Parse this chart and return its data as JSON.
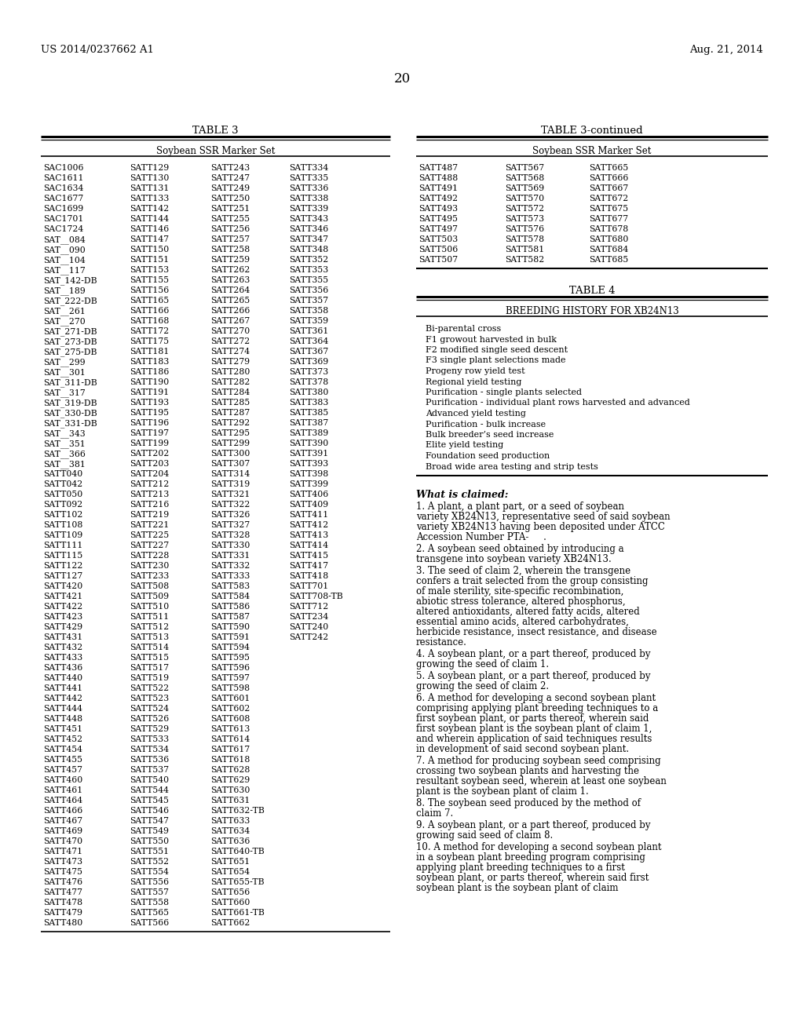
{
  "header_left": "US 2014/0237662 A1",
  "header_right": "Aug. 21, 2014",
  "page_number": "20",
  "table3_title": "TABLE 3",
  "table3_subtitle": "Soybean SSR Marker Set",
  "table3cont_title": "TABLE 3-continued",
  "table3cont_subtitle": "Soybean SSR Marker Set",
  "table4_title": "TABLE 4",
  "table4_subtitle": "BREEDING HISTORY FOR XB24N13",
  "table4_rows": [
    "Bi-parental cross",
    "F1 growout harvested in bulk",
    "F2 modified single seed descent",
    "F3 single plant selections made",
    "Progeny row yield test",
    "Regional yield testing",
    "Purification - single plants selected",
    "Purification - individual plant rows harvested and advanced",
    "Advanced yield testing",
    "Purification - bulk increase",
    "Bulk breeder’s seed increase",
    "Elite yield testing",
    "Foundation seed production",
    "Broad wide area testing and strip tests"
  ],
  "table3_col1": [
    "SAC1006",
    "SAC1611",
    "SAC1634",
    "SAC1677",
    "SAC1699",
    "SAC1701",
    "SAC1724",
    "SAT__084",
    "SAT__090",
    "SAT__104",
    "SAT__117",
    "SAT_142-DB",
    "SAT__189",
    "SAT_222-DB",
    "SAT__261",
    "SAT__270",
    "SAT_271-DB",
    "SAT_273-DB",
    "SAT_275-DB",
    "SAT__299",
    "SAT__301",
    "SAT_311-DB",
    "SAT__317",
    "SAT_319-DB",
    "SAT_330-DB",
    "SAT_331-DB",
    "SAT__343",
    "SAT__351",
    "SAT__366",
    "SAT__381",
    "SATT040",
    "SATT042",
    "SATT050",
    "SATT092",
    "SATT102",
    "SATT108",
    "SATT109",
    "SATT111",
    "SATT115",
    "SATT122",
    "SATT127",
    "SATT420",
    "SATT421",
    "SATT422",
    "SATT423",
    "SATT429",
    "SATT431",
    "SATT432",
    "SATT433",
    "SATT436",
    "SATT440",
    "SATT441",
    "SATT442",
    "SATT444",
    "SATT448",
    "SATT451",
    "SATT452",
    "SATT454",
    "SATT455",
    "SATT457",
    "SATT460",
    "SATT461",
    "SATT464",
    "SATT466",
    "SATT467",
    "SATT469",
    "SATT470",
    "SATT471",
    "SATT473",
    "SATT475",
    "SATT476",
    "SATT477",
    "SATT478",
    "SATT479",
    "SATT480"
  ],
  "table3_col2": [
    "SATT129",
    "SATT130",
    "SATT131",
    "SATT133",
    "SATT142",
    "SATT144",
    "SATT146",
    "SATT147",
    "SATT150",
    "SATT151",
    "SATT153",
    "SATT155",
    "SATT156",
    "SATT165",
    "SATT166",
    "SATT168",
    "SATT172",
    "SATT175",
    "SATT181",
    "SATT183",
    "SATT186",
    "SATT190",
    "SATT191",
    "SATT193",
    "SATT195",
    "SATT196",
    "SATT197",
    "SATT199",
    "SATT202",
    "SATT203",
    "SATT204",
    "SATT212",
    "SATT213",
    "SATT216",
    "SATT219",
    "SATT221",
    "SATT225",
    "SATT227",
    "SATT228",
    "SATT230",
    "SATT233",
    "SATT508",
    "SATT509",
    "SATT510",
    "SATT511",
    "SATT512",
    "SATT513",
    "SATT514",
    "SATT515",
    "SATT517",
    "SATT519",
    "SATT522",
    "SATT523",
    "SATT524",
    "SATT526",
    "SATT529",
    "SATT533",
    "SATT534",
    "SATT536",
    "SATT537",
    "SATT540",
    "SATT544",
    "SATT545",
    "SATT546",
    "SATT547",
    "SATT549",
    "SATT550",
    "SATT551",
    "SATT552",
    "SATT554",
    "SATT556",
    "SATT557",
    "SATT558",
    "SATT565",
    "SATT566"
  ],
  "table3_col3": [
    "SATT243",
    "SATT247",
    "SATT249",
    "SATT250",
    "SATT251",
    "SATT255",
    "SATT256",
    "SATT257",
    "SATT258",
    "SATT259",
    "SATT262",
    "SATT263",
    "SATT264",
    "SATT265",
    "SATT266",
    "SATT267",
    "SATT270",
    "SATT272",
    "SATT274",
    "SATT279",
    "SATT280",
    "SATT282",
    "SATT284",
    "SATT285",
    "SATT287",
    "SATT292",
    "SATT295",
    "SATT299",
    "SATT300",
    "SATT307",
    "SATT314",
    "SATT319",
    "SATT321",
    "SATT322",
    "SATT326",
    "SATT327",
    "SATT328",
    "SATT330",
    "SATT331",
    "SATT332",
    "SATT333",
    "SATT583",
    "SATT584",
    "SATT586",
    "SATT587",
    "SATT590",
    "SATT591",
    "SATT594",
    "SATT595",
    "SATT596",
    "SATT597",
    "SATT598",
    "SATT601",
    "SATT602",
    "SATT608",
    "SATT613",
    "SATT614",
    "SATT617",
    "SATT618",
    "SATT628",
    "SATT629",
    "SATT630",
    "SATT631",
    "SATT632-TB",
    "SATT633",
    "SATT634",
    "SATT636",
    "SATT640-TB",
    "SATT651",
    "SATT654",
    "SATT655-TB",
    "SATT656",
    "SATT660",
    "SATT661-TB",
    "SATT662"
  ],
  "table3_col4": [
    "SATT334",
    "SATT335",
    "SATT336",
    "SATT338",
    "SATT339",
    "SATT343",
    "SATT346",
    "SATT347",
    "SATT348",
    "SATT352",
    "SATT353",
    "SATT355",
    "SATT356",
    "SATT357",
    "SATT358",
    "SATT359",
    "SATT361",
    "SATT364",
    "SATT367",
    "SATT369",
    "SATT373",
    "SATT378",
    "SATT380",
    "SATT383",
    "SATT385",
    "SATT387",
    "SATT389",
    "SATT390",
    "SATT391",
    "SATT393",
    "SATT398",
    "SATT399",
    "SATT406",
    "SATT409",
    "SATT411",
    "SATT412",
    "SATT413",
    "SATT414",
    "SATT415",
    "SATT417",
    "SATT418",
    "SATT701",
    "SATT708-TB",
    "SATT712",
    "SATT234",
    "SATT240",
    "SATT242"
  ],
  "table3cont_col1": [
    "SATT487",
    "SATT488",
    "SATT491",
    "SATT492",
    "SATT493",
    "SATT495",
    "SATT497",
    "SATT503",
    "SATT506",
    "SATT507"
  ],
  "table3cont_col2": [
    "SATT567",
    "SATT568",
    "SATT569",
    "SATT570",
    "SATT572",
    "SATT573",
    "SATT576",
    "SATT578",
    "SATT581",
    "SATT582"
  ],
  "table3cont_col3": [
    "SATT665",
    "SATT666",
    "SATT667",
    "SATT672",
    "SATT675",
    "SATT677",
    "SATT678",
    "SATT680",
    "SATT684",
    "SATT685"
  ],
  "claims_header": "What is claimed:",
  "claims": [
    {
      "number": "1",
      "text": "A plant, a plant part, or a seed of soybean variety XB24N13, representative seed of said soybean variety XB24N13 having been deposited under ATCC Accession Number PTA-     ."
    },
    {
      "number": "2",
      "text": "A soybean seed obtained by introducing a transgene into soybean variety XB24N13."
    },
    {
      "number": "3",
      "text": "The seed of claim 2, wherein the transgene confers a trait selected from the group consisting of male sterility, site-specific recombination, abiotic stress tolerance, altered phosphorus, altered antioxidants, altered fatty acids, altered essential amino acids, altered carbohydrates, herbicide resistance, insect resistance, and disease resistance."
    },
    {
      "number": "4",
      "text": "A soybean plant, or a part thereof, produced by growing the seed of claim 1."
    },
    {
      "number": "5",
      "text": "A soybean plant, or a part thereof, produced by growing the seed of claim 2."
    },
    {
      "number": "6",
      "text": "A method for developing a second soybean plant comprising applying plant breeding techniques to a first soybean plant, or parts thereof, wherein said first soybean plant is the soybean plant of claim 1, and wherein application of said techniques results in development of said second soybean plant."
    },
    {
      "number": "7",
      "text": "A method for producing soybean seed comprising crossing two soybean plants and harvesting the resultant soybean seed, wherein at least one soybean plant is the soybean plant of claim 1."
    },
    {
      "number": "8",
      "text": "The soybean seed produced by the method of claim 7."
    },
    {
      "number": "9",
      "text": "A soybean plant, or a part thereof, produced by growing said seed of claim 8."
    },
    {
      "number": "10",
      "text": "A method for developing a second soybean plant in a soybean plant breeding program comprising applying plant breeding techniques to a first soybean plant, or parts thereof, wherein said first soybean plant is the soybean plant of claim"
    }
  ]
}
